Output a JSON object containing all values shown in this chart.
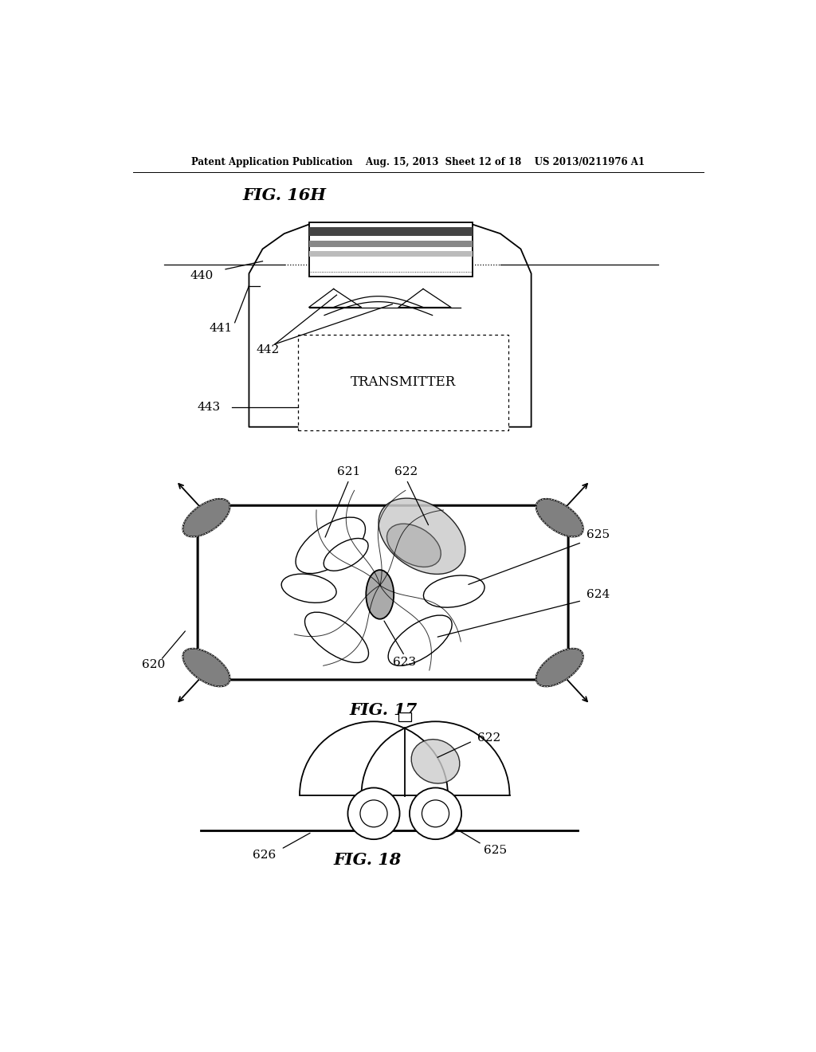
{
  "bg_color": "#ffffff",
  "lc": "#000000",
  "header": "Patent Application Publication    Aug. 15, 2013  Sheet 12 of 18    US 2013/0211976 A1",
  "title16h": "FIG. 16H",
  "title17": "FIG. 17",
  "title18": "FIG. 18",
  "gray_dark": "#808080",
  "gray_med": "#aaaaaa",
  "gray_light": "#cccccc",
  "gray_stripe1": "#444444",
  "gray_stripe2": "#888888",
  "gray_stripe3": "#bbbbbb"
}
